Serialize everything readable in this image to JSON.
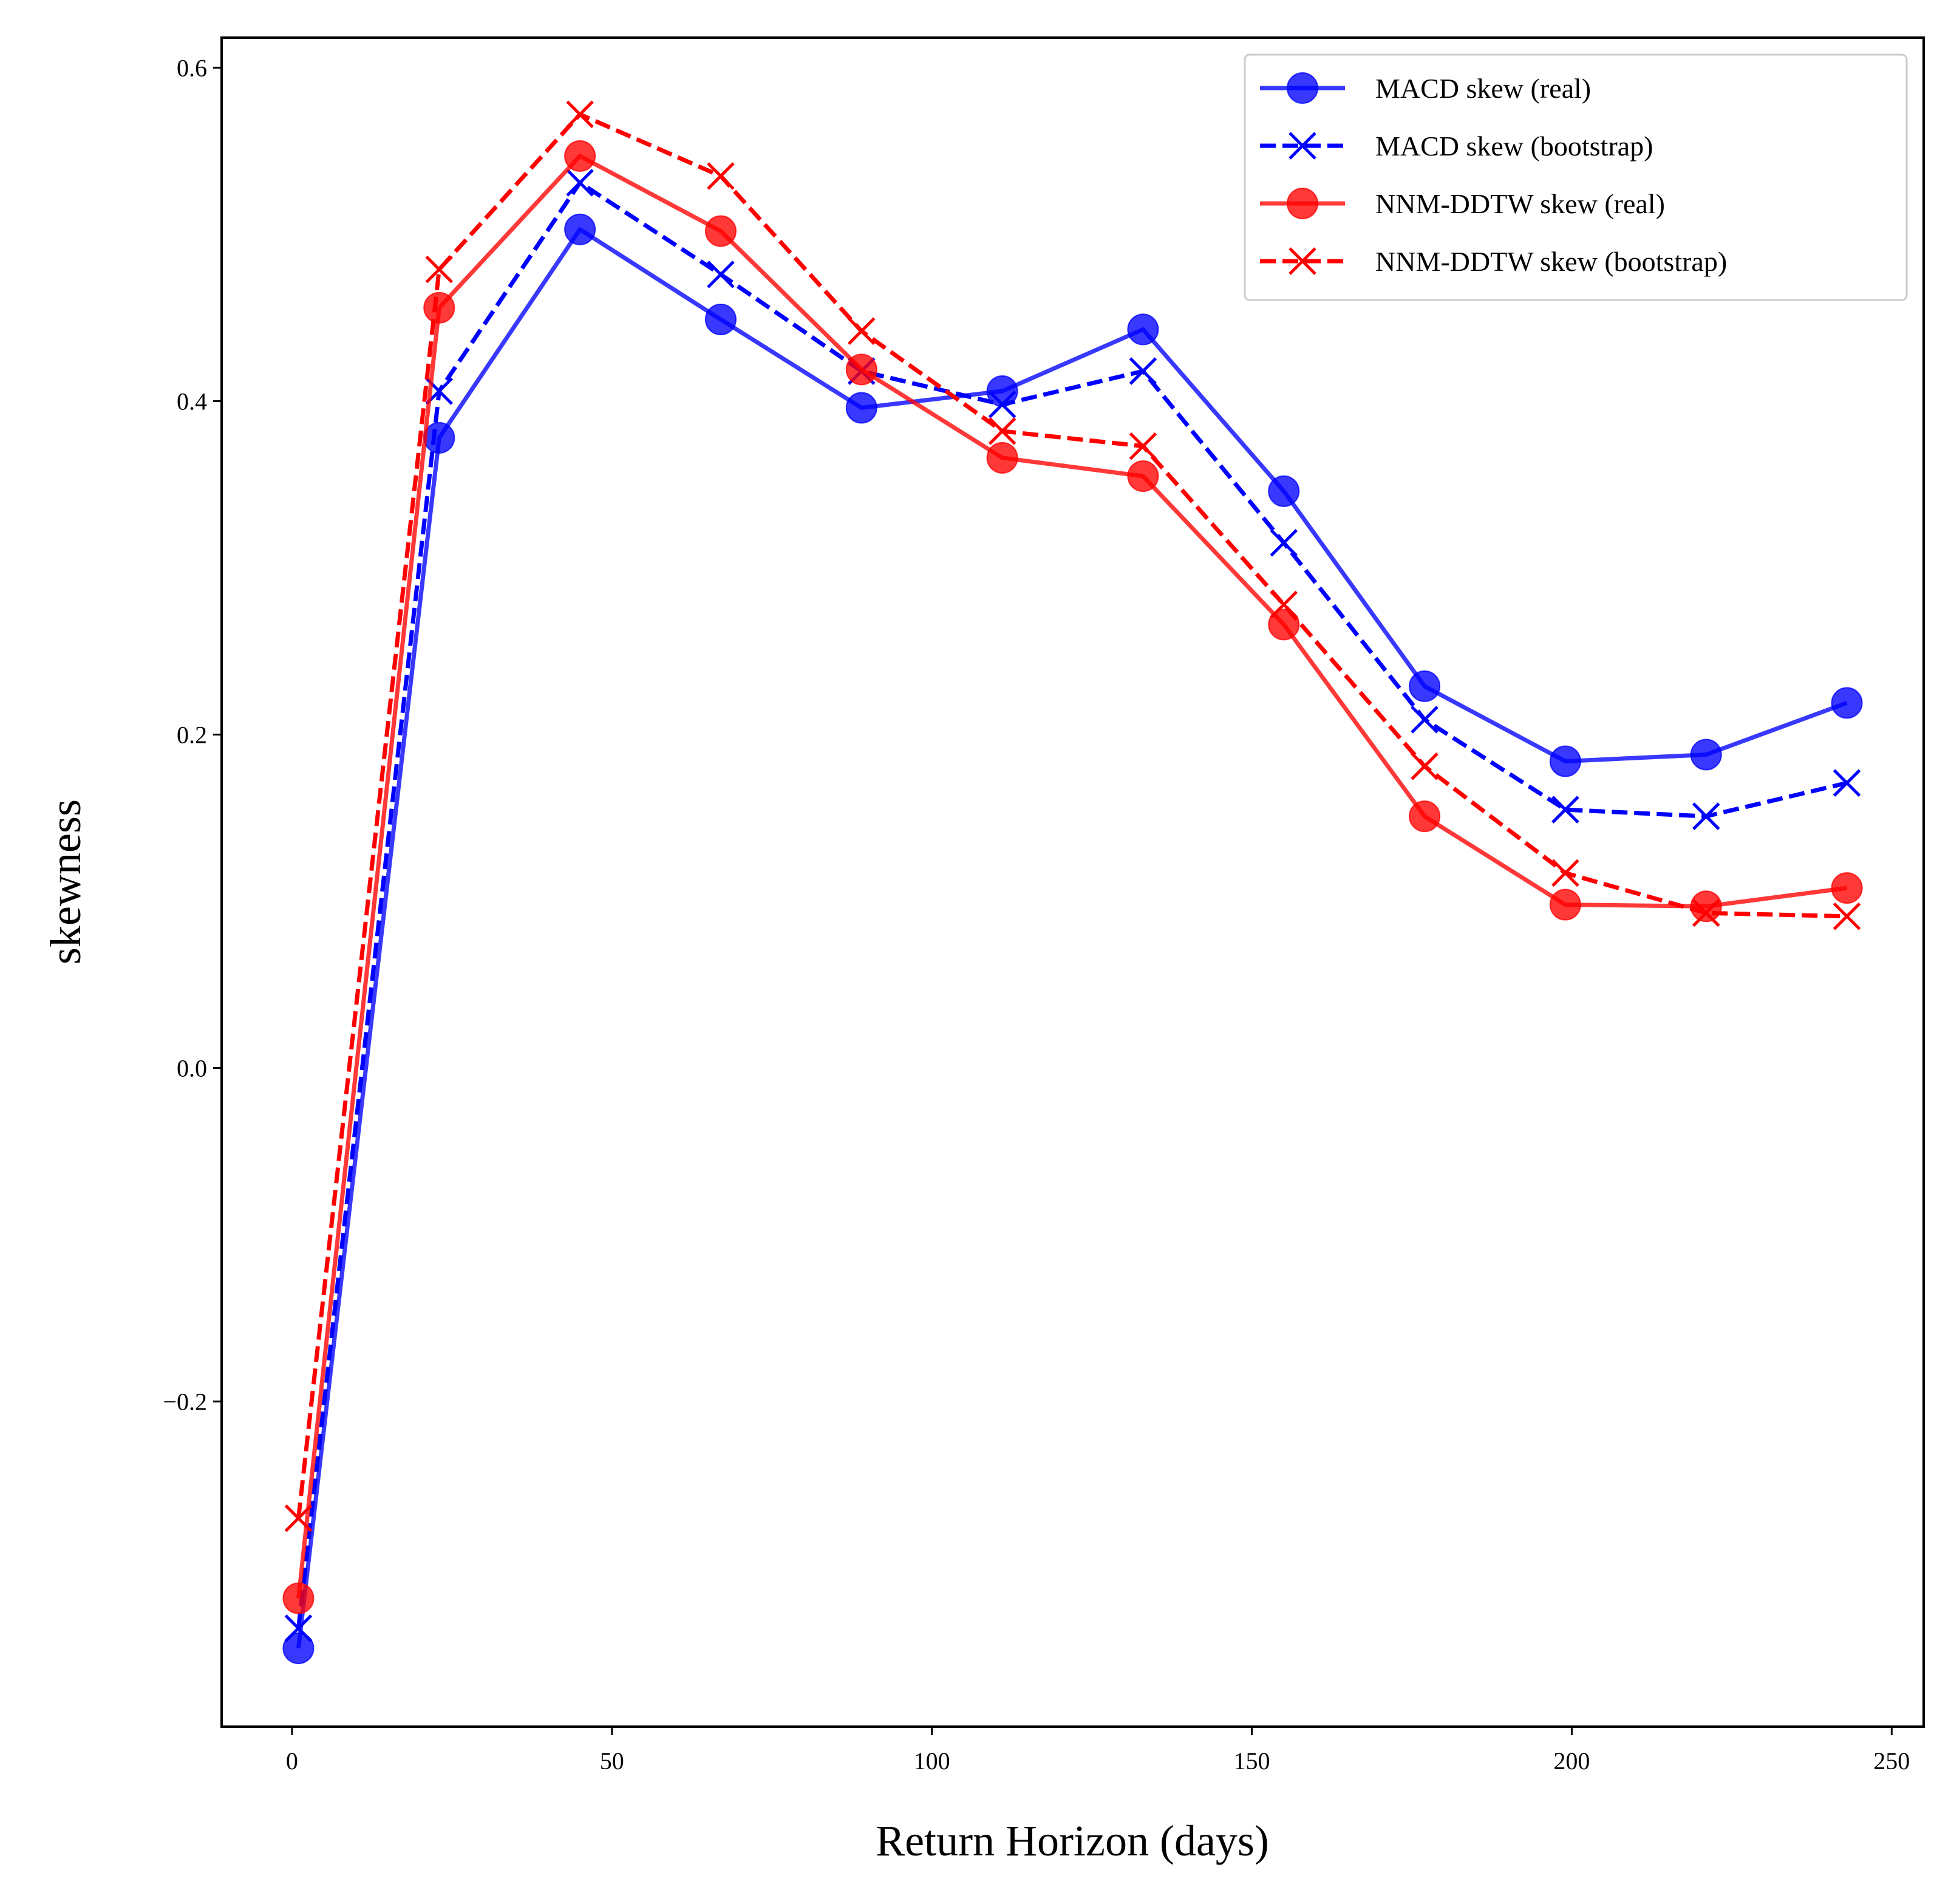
{
  "chart_data": {
    "type": "line",
    "title": "",
    "xlabel": "Return Horizon (days)",
    "ylabel": "skewness",
    "xlim": [
      -11,
      255
    ],
    "ylim": [
      -0.395,
      0.618
    ],
    "xticks": [
      0,
      50,
      100,
      150,
      200,
      250
    ],
    "yticks": [
      -0.2,
      0.0,
      0.2,
      0.4,
      0.6
    ],
    "xtick_labels": [
      "0",
      "50",
      "100",
      "150",
      "200",
      "250"
    ],
    "ytick_labels": [
      "−0.2",
      "0.0",
      "0.2",
      "0.4",
      "0.6"
    ],
    "grid": false,
    "legend_position": "top-right",
    "x": [
      1,
      23,
      45,
      67,
      89,
      111,
      133,
      155,
      177,
      199,
      221,
      243
    ],
    "series": [
      {
        "name": "MACD skew (real)",
        "color": "#0000ff",
        "linestyle": "solid",
        "marker": "circle",
        "alpha": 0.78,
        "values": [
          -0.348,
          0.378,
          0.503,
          0.449,
          0.396,
          0.406,
          0.443,
          0.346,
          0.229,
          0.184,
          0.188,
          0.219
        ]
      },
      {
        "name": "MACD skew (bootstrap)",
        "color": "#0000ff",
        "linestyle": "dashed",
        "marker": "x",
        "alpha": 1.0,
        "values": [
          -0.336,
          0.406,
          0.531,
          0.476,
          0.418,
          0.398,
          0.418,
          0.315,
          0.209,
          0.155,
          0.151,
          0.171
        ]
      },
      {
        "name": "NNM-DDTW skew (real)",
        "color": "#ff0000",
        "linestyle": "solid",
        "marker": "circle",
        "alpha": 0.78,
        "values": [
          -0.318,
          0.456,
          0.547,
          0.502,
          0.419,
          0.366,
          0.355,
          0.266,
          0.151,
          0.098,
          0.097,
          0.108
        ]
      },
      {
        "name": "NNM-DDTW skew (bootstrap)",
        "color": "#ff0000",
        "linestyle": "dashed",
        "marker": "x",
        "alpha": 1.0,
        "values": [
          -0.27,
          0.479,
          0.572,
          0.535,
          0.442,
          0.382,
          0.373,
          0.278,
          0.181,
          0.117,
          0.093,
          0.091
        ]
      }
    ]
  }
}
